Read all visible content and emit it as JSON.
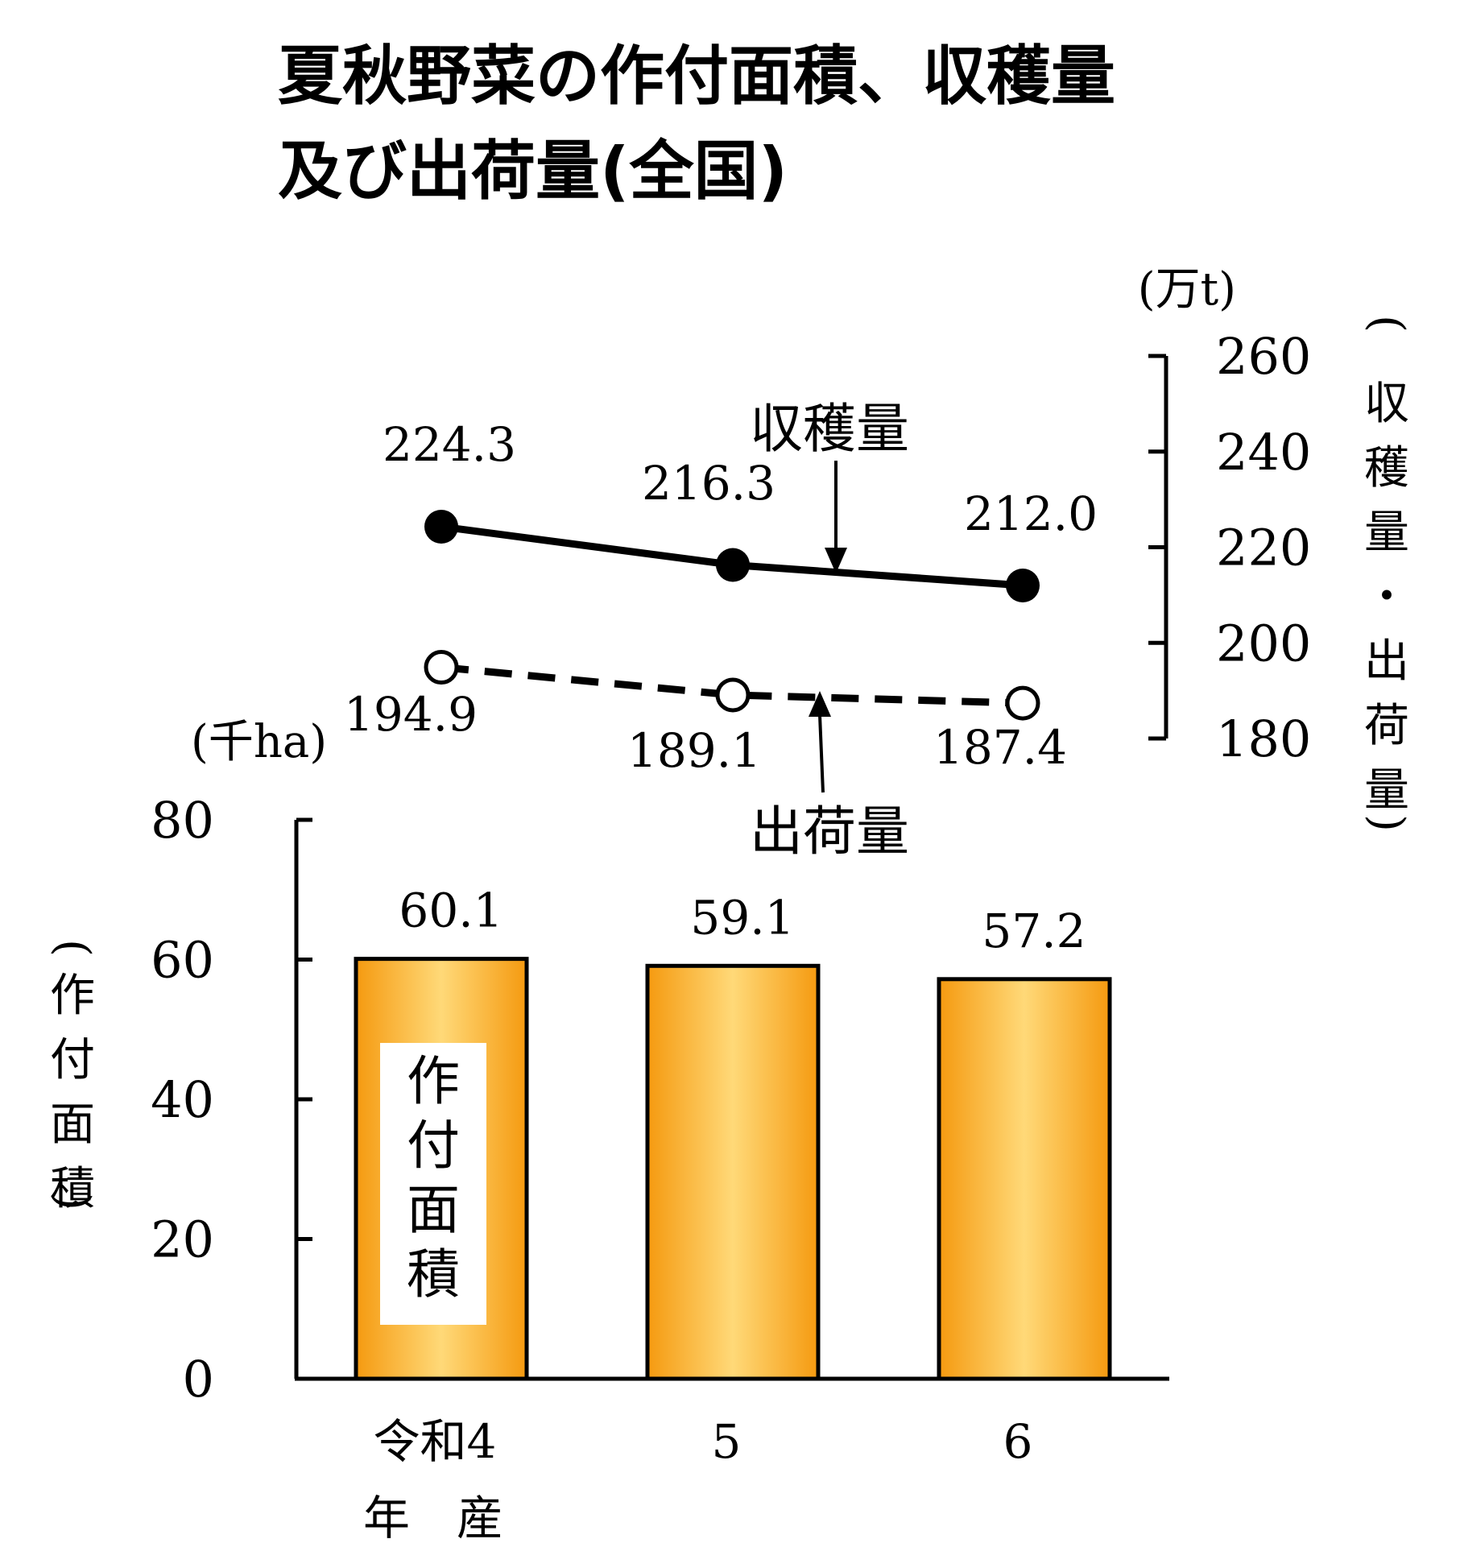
{
  "title_line1": "夏秋野菜の作付面積、収穫量",
  "title_line2": "及び出荷量(全国)",
  "chart_data": {
    "type": "bar+line",
    "categories": [
      "令和4",
      "5",
      "6"
    ],
    "category_suffix": "年　産",
    "bar": {
      "name": "作付面積",
      "values": [
        60.1,
        59.1,
        57.2
      ],
      "labels": [
        "60.1",
        "59.1",
        "57.2"
      ],
      "unit": "(千ha)",
      "axis_label": "(作付面積)",
      "ylim": [
        0,
        80
      ],
      "ticks": [
        0,
        20,
        40,
        60,
        80
      ],
      "color_edge": "#f59a10",
      "color_mid": "#ffd978"
    },
    "lines": [
      {
        "name": "収穫量",
        "values": [
          224.3,
          216.3,
          212.0
        ],
        "labels": [
          "224.3",
          "216.3",
          "212.0"
        ],
        "style": "solid",
        "marker": "filled-circle"
      },
      {
        "name": "出荷量",
        "values": [
          194.9,
          189.1,
          187.4
        ],
        "labels": [
          "194.9",
          "189.1",
          "187.4"
        ],
        "style": "dashed",
        "marker": "open-circle"
      }
    ],
    "line_axis": {
      "unit": "(万t)",
      "axis_label": "(収穫量・出荷量)",
      "ylim": [
        180,
        260
      ],
      "ticks": [
        180,
        200,
        220,
        240,
        260
      ],
      "position": "right"
    }
  }
}
